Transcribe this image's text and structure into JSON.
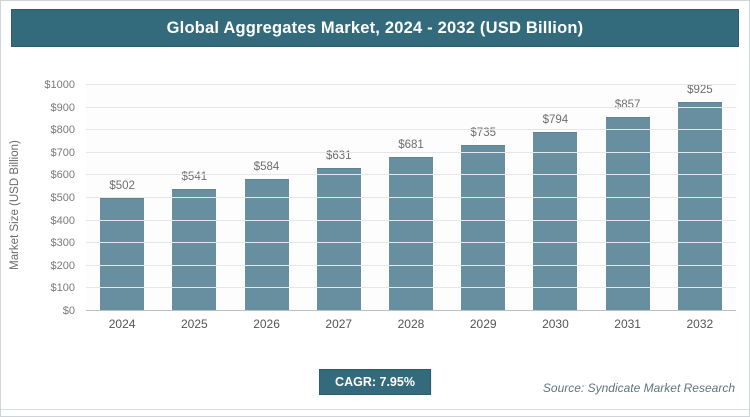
{
  "header": {
    "title": "Global Aggregates Market, 2024 - 2032 (USD Billion)"
  },
  "chart_data": {
    "type": "bar",
    "title": "Global Aggregates Market, 2024 - 2032 (USD Billion)",
    "categories": [
      "2024",
      "2025",
      "2026",
      "2027",
      "2028",
      "2029",
      "2030",
      "2031",
      "2032"
    ],
    "values": [
      502,
      541,
      584,
      631,
      681,
      735,
      794,
      857,
      925
    ],
    "xlabel": "",
    "ylabel": "Market Size (USD Billion)",
    "ylim": [
      0,
      1000
    ],
    "ytick_step": 100,
    "value_prefix": "$",
    "grid": "horizontal",
    "legend": "none",
    "bar_color": "#688fa0"
  },
  "footer": {
    "cagr_label": "CAGR: 7.95%",
    "source": "Source: Syndicate Market Research"
  },
  "colors": {
    "accent": "#336b7d",
    "bar": "#688fa0",
    "grid": "#e4e6e8"
  }
}
